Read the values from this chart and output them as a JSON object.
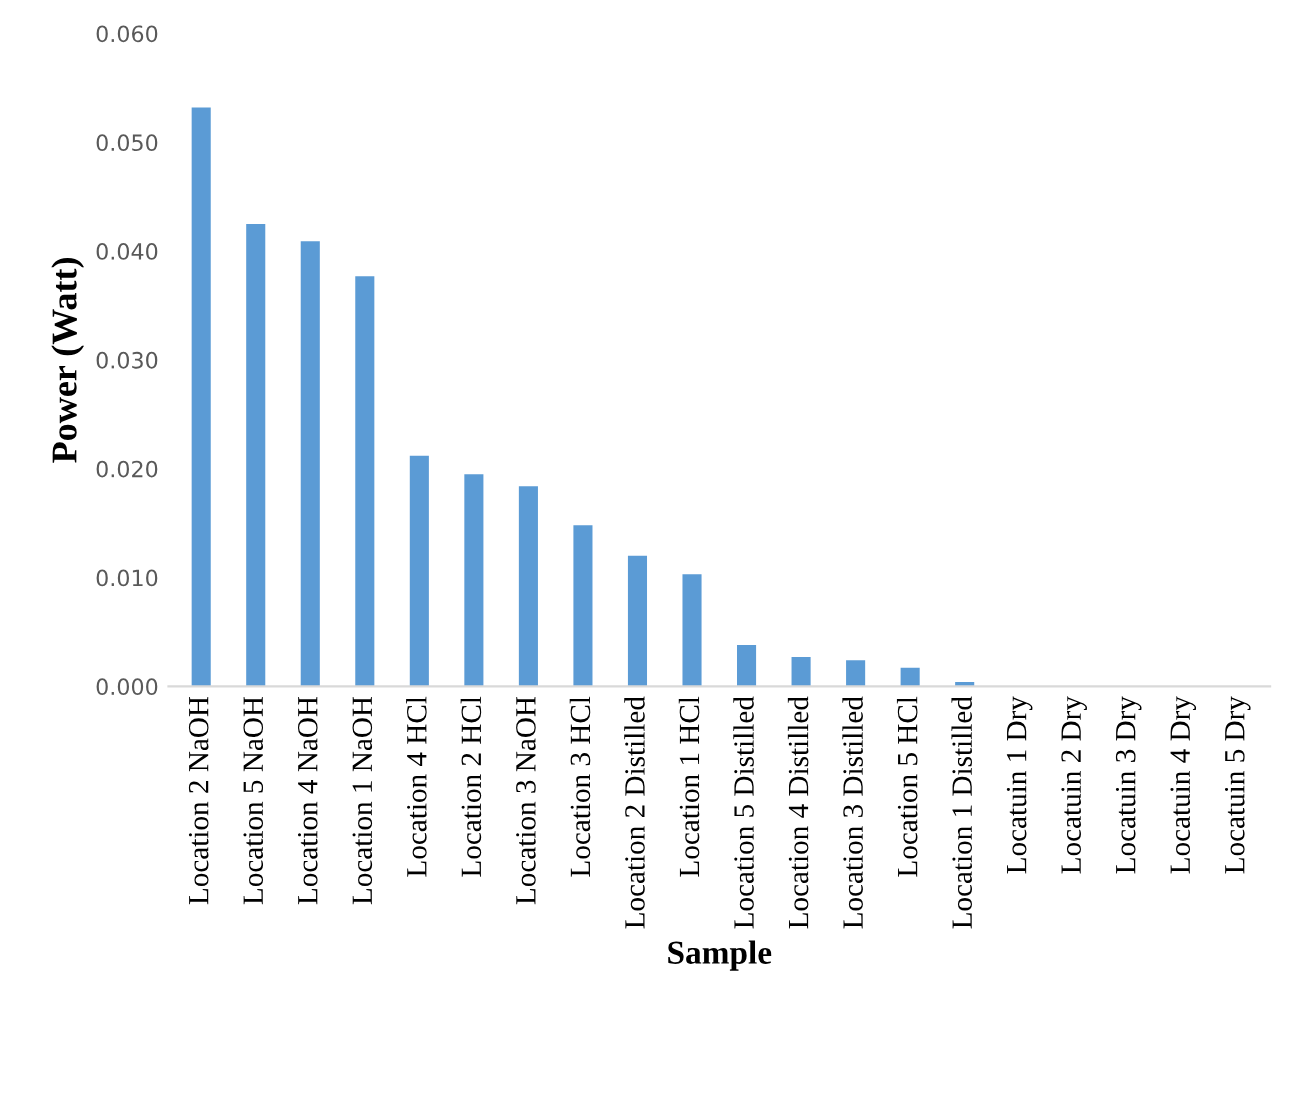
{
  "chart_data": {
    "type": "bar",
    "xlabel": "Sample",
    "ylabel": "Power (Watt)",
    "categories": [
      "Location 2 NaOH",
      "Location 5 NaOH",
      "Location 4 NaOH",
      "Location 1 NaOH",
      "Location 4 HCl",
      "Location 2 HCl",
      "Location 3 NaOH",
      "Location 3 HCl",
      "Location 2 Distilled",
      "Location 1 HCl",
      "Location 5 Distilled",
      "Location 4 Distilled",
      "Location 3 Distilled",
      "Location 5 HCl",
      "Location 1 Distilled",
      "Locatuin 1 Dry",
      "Locatuin 2 Dry",
      "Locatuin 3 Dry",
      "Locatuin 4 Dry",
      "Locatuin 5 Dry"
    ],
    "values": [
      0.0532,
      0.0425,
      0.0409,
      0.0377,
      0.0212,
      0.0195,
      0.0184,
      0.0148,
      0.012,
      0.0103,
      0.0038,
      0.0027,
      0.0024,
      0.0017,
      0.0004,
      0,
      0,
      0,
      0,
      0
    ],
    "color": "#5b9bd5",
    "ylim": [
      0,
      0.06
    ],
    "yticks": [
      {
        "value": 0,
        "label": "0.000"
      },
      {
        "value": 0.01,
        "label": "0.010"
      },
      {
        "value": 0.02,
        "label": "0.020"
      },
      {
        "value": 0.03,
        "label": "0.030"
      },
      {
        "value": 0.04,
        "label": "0.040"
      },
      {
        "value": 0.05,
        "label": "0.050"
      },
      {
        "value": 0.06,
        "label": "0.060"
      }
    ],
    "grid": false
  }
}
